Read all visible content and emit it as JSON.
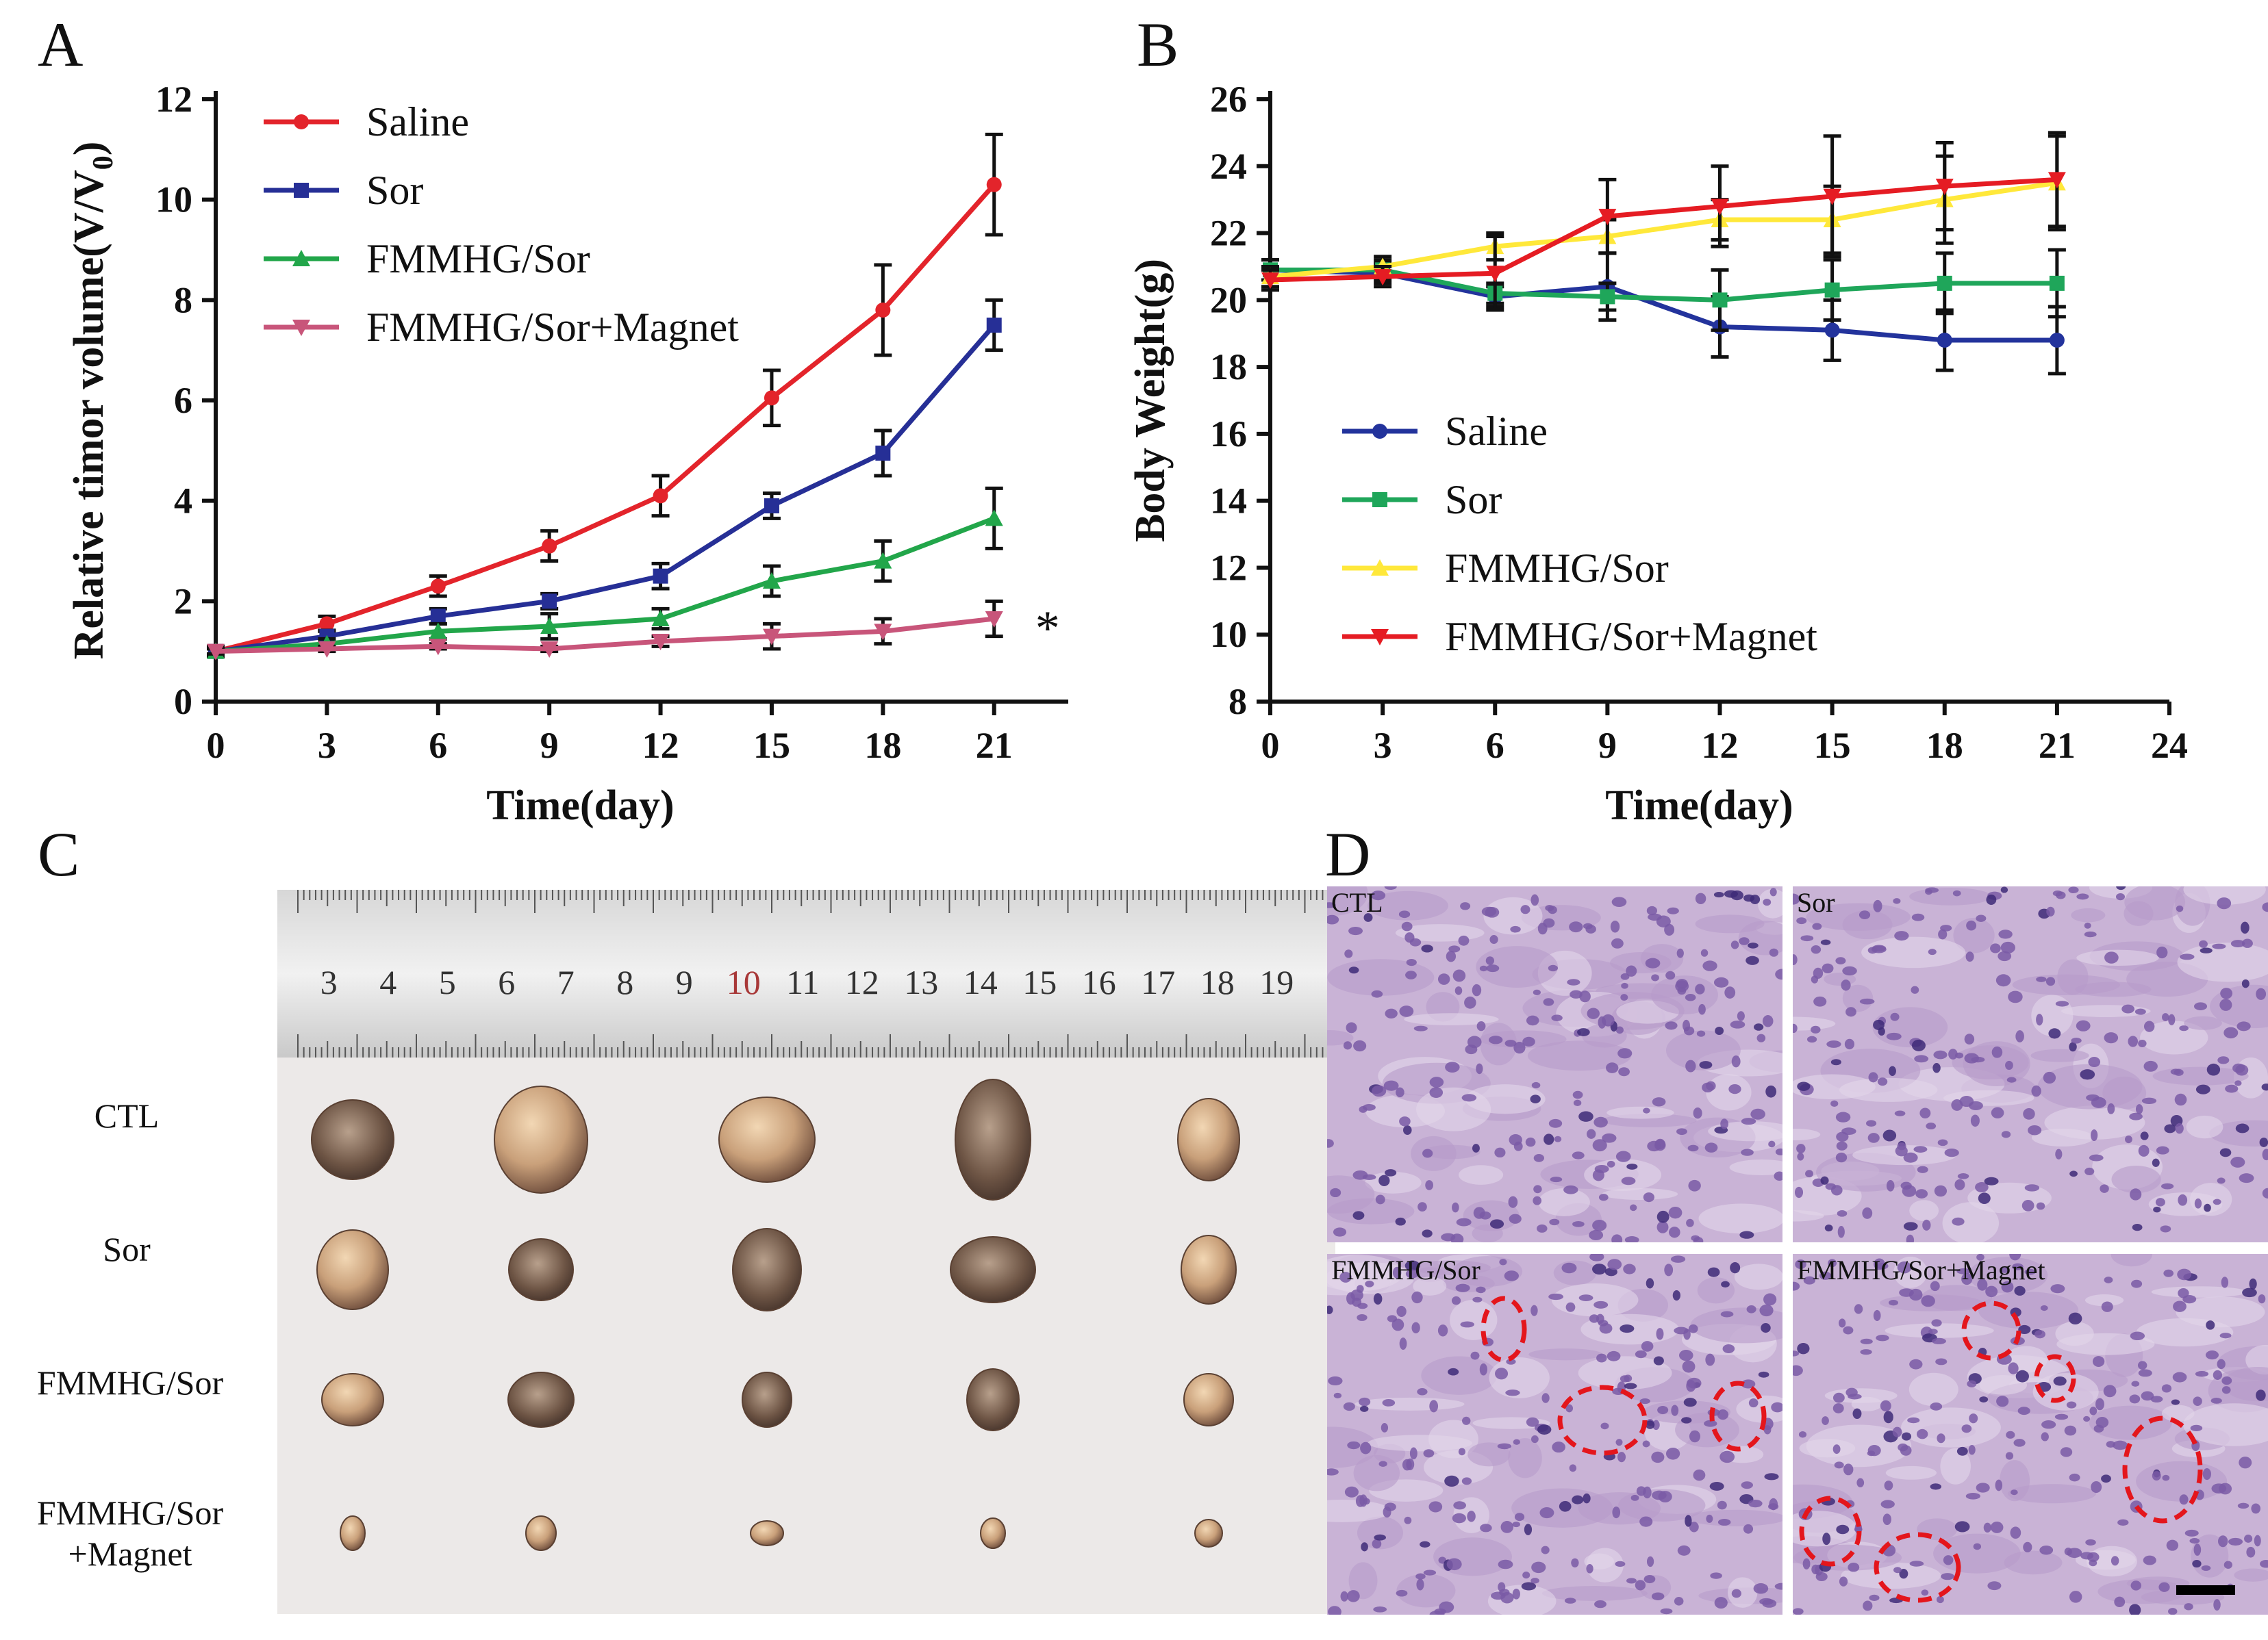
{
  "panels": {
    "a": "A",
    "b": "B",
    "c": "C",
    "d": "D"
  },
  "colors": {
    "saline_a": "#e3242b",
    "sor_a": "#262f96",
    "fmmhg_a": "#22a64a",
    "magnet_a": "#c8557a",
    "saline_b": "#23339c",
    "sor_b": "#1fa65a",
    "fmmhg_b": "#ffe83a",
    "magnet_b": "#e51c23"
  },
  "chart_data": [
    {
      "type": "line",
      "title": "",
      "xlabel": "Time(day)",
      "ylabel": "Relative timor volume(V/V",
      "ylabel_sub": "0",
      "ylabel_tail": ")",
      "x": [
        0,
        3,
        6,
        9,
        12,
        15,
        18,
        21
      ],
      "xlim": [
        0,
        23
      ],
      "ylim": [
        0,
        12
      ],
      "xticks": [
        "0",
        "3",
        "6",
        "9",
        "12",
        "15",
        "18",
        "21"
      ],
      "yticks": [
        "0",
        "2",
        "4",
        "6",
        "8",
        "10",
        "12"
      ],
      "legend_position": "top-left",
      "annotation": "*",
      "series": [
        {
          "name": "Saline",
          "color_key": "saline_a",
          "marker": "circle",
          "values": [
            1,
            1.55,
            2.3,
            3.1,
            4.1,
            6.05,
            7.8,
            10.3
          ],
          "errors": [
            0.1,
            0.15,
            0.2,
            0.3,
            0.4,
            0.55,
            0.9,
            1.0
          ]
        },
        {
          "name": "Sor",
          "color_key": "sor_a",
          "marker": "square",
          "values": [
            1,
            1.3,
            1.7,
            2.0,
            2.5,
            3.9,
            4.95,
            7.5
          ],
          "errors": [
            0.1,
            0.12,
            0.15,
            0.15,
            0.25,
            0.25,
            0.45,
            0.5
          ]
        },
        {
          "name": "FMMHG/Sor",
          "color_key": "fmmhg_a",
          "marker": "triangle-up",
          "values": [
            1,
            1.15,
            1.4,
            1.5,
            1.65,
            2.4,
            2.8,
            3.65
          ],
          "errors": [
            0.1,
            0.1,
            0.15,
            0.25,
            0.2,
            0.3,
            0.4,
            0.6
          ]
        },
        {
          "name": "FMMHG/Sor+Magnet",
          "color_key": "magnet_a",
          "marker": "triangle-down",
          "values": [
            1,
            1.05,
            1.1,
            1.05,
            1.2,
            1.3,
            1.4,
            1.65
          ],
          "errors": [
            0.05,
            0.05,
            0.05,
            0.05,
            0.1,
            0.25,
            0.25,
            0.35
          ]
        }
      ]
    },
    {
      "type": "line",
      "title": "",
      "xlabel": "Time(day)",
      "ylabel": "Body Weight(g)",
      "x": [
        0,
        3,
        6,
        9,
        12,
        15,
        18,
        21
      ],
      "xlim": [
        0,
        24
      ],
      "ylim": [
        8,
        26
      ],
      "xticks": [
        "0",
        "3",
        "6",
        "9",
        "12",
        "15",
        "18",
        "21",
        "24"
      ],
      "yticks": [
        "8",
        "10",
        "12",
        "14",
        "16",
        "18",
        "20",
        "22",
        "24",
        "26"
      ],
      "legend_position": "bottom-left",
      "series": [
        {
          "name": "Saline",
          "color_key": "saline_b",
          "marker": "circle",
          "values": [
            20.9,
            20.8,
            20.1,
            20.4,
            19.2,
            19.1,
            18.8,
            18.8
          ],
          "errors": [
            0.3,
            0.3,
            0.3,
            1.0,
            0.9,
            0.9,
            0.9,
            1.0
          ]
        },
        {
          "name": "Sor",
          "color_key": "sor_b",
          "marker": "square",
          "values": [
            20.9,
            20.9,
            20.2,
            20.1,
            20.0,
            20.3,
            20.5,
            20.5
          ],
          "errors": [
            0.3,
            0.3,
            0.3,
            0.4,
            0.9,
            0.9,
            0.9,
            1.0
          ]
        },
        {
          "name": "FMMHG/Sor",
          "color_key": "fmmhg_b",
          "marker": "triangle-up",
          "values": [
            20.7,
            21.0,
            21.6,
            21.9,
            22.4,
            22.4,
            23.0,
            23.5
          ],
          "errors": [
            0.3,
            0.3,
            0.4,
            0.5,
            0.6,
            1.0,
            1.3,
            1.4
          ]
        },
        {
          "name": "FMMHG/Sor+Magnet",
          "color_key": "magnet_b",
          "marker": "triangle-down",
          "values": [
            20.6,
            20.7,
            20.8,
            22.5,
            22.8,
            23.1,
            23.4,
            23.6
          ],
          "errors": [
            0.3,
            0.3,
            1.1,
            1.1,
            1.2,
            1.8,
            1.3,
            1.4
          ]
        }
      ]
    }
  ],
  "photo": {
    "ruler_numbers": [
      "3",
      "4",
      "5",
      "6",
      "7",
      "8",
      "9",
      "10",
      "11",
      "12",
      "13",
      "14",
      "15",
      "16",
      "17",
      "18",
      "19"
    ],
    "rows": [
      "CTL",
      "Sor",
      "FMMHG/Sor",
      "FMMHG/Sor\n+Magnet"
    ]
  },
  "histology": {
    "tiles": [
      "CTL",
      "Sor",
      "FMMHG/Sor",
      "FMMHG/Sor+Magnet"
    ]
  }
}
